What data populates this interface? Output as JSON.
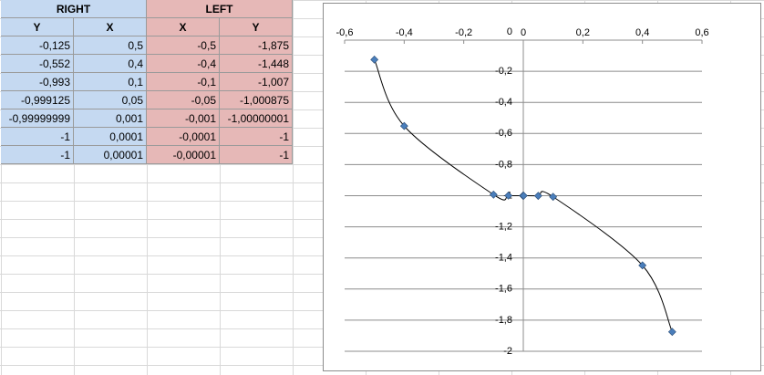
{
  "table": {
    "groups": [
      "RIGHT",
      "LEFT"
    ],
    "header": [
      "Y",
      "X",
      "X",
      "Y"
    ],
    "rows": [
      [
        "-0,125",
        "0,5",
        "-0,5",
        "-1,875"
      ],
      [
        "-0,552",
        "0,4",
        "-0,4",
        "-1,448"
      ],
      [
        "-0,993",
        "0,1",
        "-0,1",
        "-1,007"
      ],
      [
        "-0,999125",
        "0,05",
        "-0,05",
        "-1,000875"
      ],
      [
        "-0,99999999",
        "0,001",
        "-0,001",
        "-1,00000001"
      ],
      [
        "-1",
        "0,0001",
        "-0,0001",
        "-1"
      ],
      [
        "-1",
        "0,00001",
        "-0,00001",
        "-1"
      ]
    ]
  },
  "chart_data": {
    "type": "scatter",
    "color": "#4a7ebb",
    "x": [
      -0.5,
      -0.4,
      -0.1,
      -0.05,
      -0.001,
      -0.0001,
      -1e-05,
      1e-05,
      0.0001,
      0.001,
      0.05,
      0.1,
      0.4,
      0.5
    ],
    "y": [
      -0.125,
      -0.552,
      -0.993,
      -0.999125,
      -0.99999999,
      -1,
      -1,
      -1,
      -1,
      -1.00000001,
      -1.000875,
      -1.007,
      -1.448,
      -1.875
    ],
    "xlim": [
      -0.6,
      0.6
    ],
    "ylim": [
      -2,
      0
    ],
    "xticks": [
      {
        "value": -0.6,
        "label": "-0,6"
      },
      {
        "value": -0.4,
        "label": "-0,4"
      },
      {
        "value": -0.2,
        "label": "-0,2"
      },
      0,
      {
        "value": 0.2,
        "label": "0,2"
      },
      {
        "value": 0.4,
        "label": "0,4"
      },
      {
        "value": 0.6,
        "label": "0,6"
      }
    ],
    "yticks": [
      0,
      {
        "value": -0.2,
        "label": "-0,2"
      },
      {
        "value": -0.4,
        "label": "-0,4"
      },
      {
        "value": -0.6,
        "label": "-0,6"
      },
      {
        "value": -0.8,
        "label": "-0,8"
      },
      {
        "value": -1,
        "label": "-1"
      },
      {
        "value": -1.2,
        "label": "-1,2"
      },
      {
        "value": -1.4,
        "label": "-1,4"
      },
      {
        "value": -1.6,
        "label": "-1,6"
      },
      {
        "value": -1.8,
        "label": "-1,8"
      },
      {
        "value": -2,
        "label": "-2"
      }
    ],
    "grid": true
  }
}
